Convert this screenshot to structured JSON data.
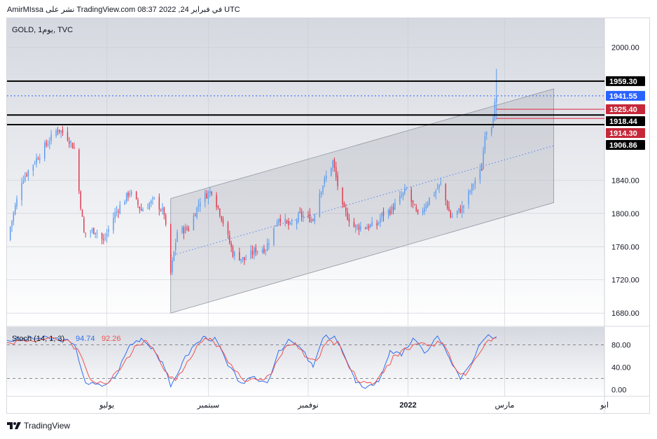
{
  "header": {
    "text": "AmirMIssa نشر على TradingView.com في فبراير 24, 2022 08:37 UTC"
  },
  "brand": {
    "name": "TradingView"
  },
  "colors": {
    "up": "#5b9cf0",
    "down": "#e0394f",
    "stoch_k": "#2f6fef",
    "stoch_d": "#ef5350",
    "channel_fill": "#9ea3ae",
    "resistance_line": "#000000",
    "price_line": "#2962ff"
  },
  "chart_data": [
    {
      "type": "candlestick",
      "title": "GOLD, 1يوم, TVC",
      "symbol": "GOLD",
      "interval": "1يوم",
      "exchange": "TVC",
      "ylim": [
        1665,
        2035
      ],
      "y_ticks": [
        {
          "value": 1680,
          "label": "1680.00"
        },
        {
          "value": 1720,
          "label": "1720.00"
        },
        {
          "value": 1760,
          "label": "1760.00"
        },
        {
          "value": 1800,
          "label": "1800.00"
        },
        {
          "value": 1840,
          "label": "1840.00"
        },
        {
          "value": 2000,
          "label": "2000.00"
        }
      ],
      "x_labels": [
        {
          "label": "يوليو",
          "date": "2021-07-01"
        },
        {
          "label": "سبتمبر",
          "date": "2021-09-01"
        },
        {
          "label": "نوفمبر",
          "date": "2021-11-01"
        },
        {
          "label": "2022",
          "date": "2022-01-01",
          "bold": true
        },
        {
          "label": "مارس",
          "date": "2022-03-01"
        },
        {
          "label": "ابو",
          "date": "2022-05-01"
        }
      ],
      "horizontal_lines": [
        1959.3,
        1918.44,
        1906.86
      ],
      "current_price": 1941.55,
      "price_labels": [
        {
          "value": 1959.3,
          "label": "1959.30",
          "style": "black"
        },
        {
          "value": 1941.55,
          "label": "1941.55",
          "style": "blue"
        },
        {
          "value": 1925.4,
          "label": "1925.40",
          "style": "red"
        },
        {
          "value": 1918.44,
          "label": "1918.44",
          "style": "black"
        },
        {
          "value": 1914.3,
          "label": "1914.30",
          "style": "red"
        },
        {
          "value": 1906.86,
          "label": "1906.86",
          "style": "black"
        }
      ],
      "channel": {
        "start_date": "2021-08-09",
        "end_date": "2022-03-31",
        "lower_start": 1680,
        "lower_end": 1813,
        "upper_start": 1818,
        "upper_end": 1950
      },
      "close_points": [
        [
          "2021-05-01",
          1768
        ],
        [
          "2021-05-10",
          1840
        ],
        [
          "2021-05-24",
          1880
        ],
        [
          "2021-06-01",
          1902
        ],
        [
          "2021-06-07",
          1892
        ],
        [
          "2021-06-11",
          1878
        ],
        [
          "2021-06-17",
          1776
        ],
        [
          "2021-06-24",
          1780
        ],
        [
          "2021-06-29",
          1766
        ],
        [
          "2021-07-06",
          1800
        ],
        [
          "2021-07-15",
          1826
        ],
        [
          "2021-07-22",
          1804
        ],
        [
          "2021-07-30",
          1816
        ],
        [
          "2021-08-05",
          1800
        ],
        [
          "2021-08-09",
          1728
        ],
        [
          "2021-08-13",
          1778
        ],
        [
          "2021-08-20",
          1782
        ],
        [
          "2021-08-27",
          1816
        ],
        [
          "2021-09-03",
          1828
        ],
        [
          "2021-09-09",
          1796
        ],
        [
          "2021-09-16",
          1752
        ],
        [
          "2021-09-23",
          1744
        ],
        [
          "2021-09-30",
          1756
        ],
        [
          "2021-10-06",
          1758
        ],
        [
          "2021-10-14",
          1796
        ],
        [
          "2021-10-21",
          1784
        ],
        [
          "2021-10-27",
          1798
        ],
        [
          "2021-11-04",
          1793
        ],
        [
          "2021-11-08",
          1826
        ],
        [
          "2021-11-16",
          1862
        ],
        [
          "2021-11-22",
          1806
        ],
        [
          "2021-11-29",
          1784
        ],
        [
          "2021-12-06",
          1784
        ],
        [
          "2021-12-13",
          1786
        ],
        [
          "2021-12-16",
          1798
        ],
        [
          "2021-12-22",
          1805
        ],
        [
          "2021-12-31",
          1828
        ],
        [
          "2022-01-07",
          1796
        ],
        [
          "2022-01-14",
          1818
        ],
        [
          "2022-01-21",
          1835
        ],
        [
          "2022-01-27",
          1796
        ],
        [
          "2022-02-03",
          1806
        ],
        [
          "2022-02-10",
          1836
        ],
        [
          "2022-02-15",
          1854
        ],
        [
          "2022-02-17",
          1898
        ],
        [
          "2022-02-21",
          1908
        ],
        [
          "2022-02-24",
          1941.55
        ]
      ]
    },
    {
      "type": "line",
      "title": "Stoch (14, 1, 3)",
      "k_label": "94.74",
      "d_label": "92.26",
      "ylim": [
        -12,
        112
      ],
      "y_ticks": [
        {
          "value": 80,
          "label": "80.00"
        },
        {
          "value": 40,
          "label": "40.00"
        },
        {
          "value": 0,
          "label": "0.00"
        }
      ],
      "bands": [
        80,
        20
      ],
      "series": [
        {
          "name": "%K",
          "points": [
            [
              "2021-05-01",
              88
            ],
            [
              "2021-05-20",
              92
            ],
            [
              "2021-06-05",
              90
            ],
            [
              "2021-06-12",
              75
            ],
            [
              "2021-06-18",
              12
            ],
            [
              "2021-06-28",
              6
            ],
            [
              "2021-07-06",
              22
            ],
            [
              "2021-07-15",
              80
            ],
            [
              "2021-07-22",
              92
            ],
            [
              "2021-07-29",
              75
            ],
            [
              "2021-08-05",
              40
            ],
            [
              "2021-08-09",
              5
            ],
            [
              "2021-08-16",
              48
            ],
            [
              "2021-08-23",
              78
            ],
            [
              "2021-08-30",
              95
            ],
            [
              "2021-09-06",
              88
            ],
            [
              "2021-09-13",
              42
            ],
            [
              "2021-09-21",
              12
            ],
            [
              "2021-09-30",
              20
            ],
            [
              "2021-10-07",
              12
            ],
            [
              "2021-10-14",
              70
            ],
            [
              "2021-10-21",
              88
            ],
            [
              "2021-10-28",
              72
            ],
            [
              "2021-11-04",
              40
            ],
            [
              "2021-11-10",
              92
            ],
            [
              "2021-11-17",
              96
            ],
            [
              "2021-11-23",
              62
            ],
            [
              "2021-11-30",
              12
            ],
            [
              "2021-12-07",
              5
            ],
            [
              "2021-12-14",
              14
            ],
            [
              "2021-12-21",
              70
            ],
            [
              "2021-12-28",
              60
            ],
            [
              "2022-01-04",
              92
            ],
            [
              "2022-01-11",
              65
            ],
            [
              "2022-01-19",
              96
            ],
            [
              "2022-01-26",
              58
            ],
            [
              "2022-02-02",
              18
            ],
            [
              "2022-02-09",
              48
            ],
            [
              "2022-02-15",
              85
            ],
            [
              "2022-02-20",
              96
            ],
            [
              "2022-02-24",
              94.74
            ]
          ]
        },
        {
          "name": "%D",
          "points": [
            [
              "2021-05-01",
              84
            ],
            [
              "2021-05-22",
              90
            ],
            [
              "2021-06-07",
              89
            ],
            [
              "2021-06-14",
              68
            ],
            [
              "2021-06-21",
              18
            ],
            [
              "2021-07-01",
              10
            ],
            [
              "2021-07-09",
              35
            ],
            [
              "2021-07-18",
              78
            ],
            [
              "2021-07-25",
              88
            ],
            [
              "2021-08-01",
              62
            ],
            [
              "2021-08-08",
              22
            ],
            [
              "2021-08-12",
              16
            ],
            [
              "2021-08-19",
              50
            ],
            [
              "2021-08-26",
              82
            ],
            [
              "2021-09-02",
              92
            ],
            [
              "2021-09-09",
              72
            ],
            [
              "2021-09-17",
              34
            ],
            [
              "2021-09-25",
              15
            ],
            [
              "2021-10-03",
              18
            ],
            [
              "2021-10-10",
              30
            ],
            [
              "2021-10-17",
              72
            ],
            [
              "2021-10-24",
              84
            ],
            [
              "2021-10-31",
              58
            ],
            [
              "2021-11-06",
              52
            ],
            [
              "2021-11-13",
              88
            ],
            [
              "2021-11-20",
              82
            ],
            [
              "2021-11-27",
              35
            ],
            [
              "2021-12-03",
              12
            ],
            [
              "2021-12-10",
              9
            ],
            [
              "2021-12-17",
              30
            ],
            [
              "2021-12-24",
              62
            ],
            [
              "2021-12-31",
              72
            ],
            [
              "2022-01-07",
              82
            ],
            [
              "2022-01-15",
              80
            ],
            [
              "2022-01-22",
              84
            ],
            [
              "2022-01-29",
              42
            ],
            [
              "2022-02-05",
              25
            ],
            [
              "2022-02-12",
              58
            ],
            [
              "2022-02-17",
              82
            ],
            [
              "2022-02-22",
              92
            ],
            [
              "2022-02-24",
              92.26
            ]
          ]
        }
      ]
    }
  ]
}
